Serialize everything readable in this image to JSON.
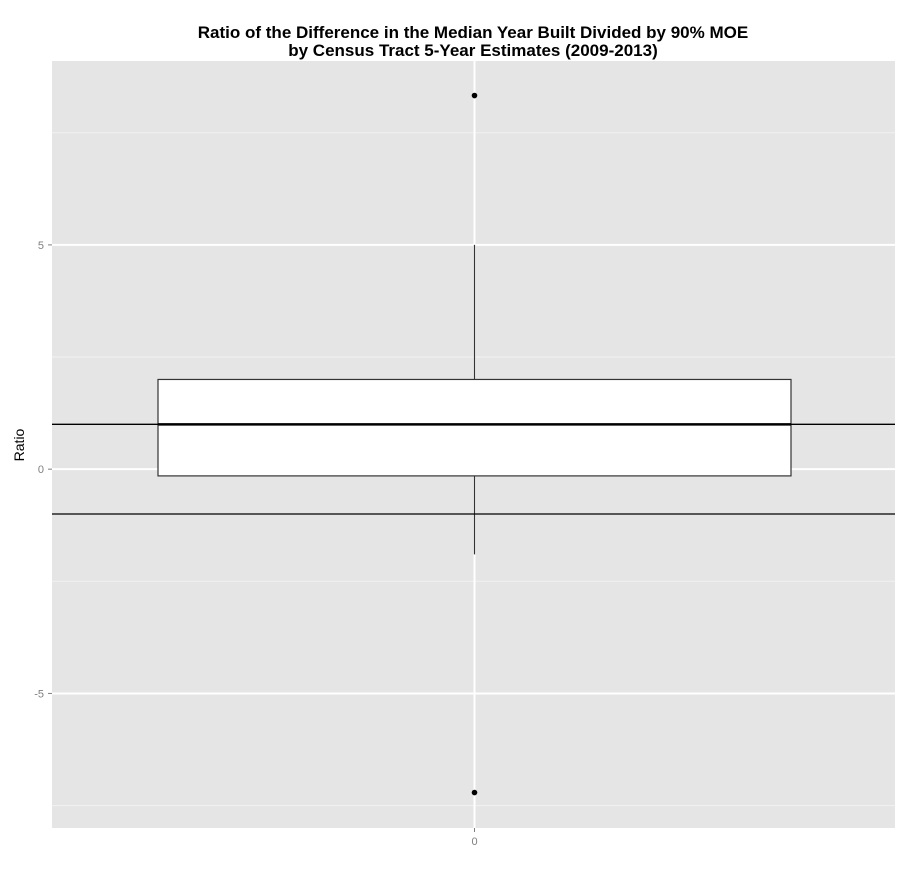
{
  "chart_data": {
    "type": "boxplot",
    "title": "Ratio of the Difference in the Median Year Built Divided by 90% MOE\nby Census Tract 5-Year Estimates (2009-2013)",
    "title_lines": [
      "Ratio of the Difference in the Median Year Built Divided by 90% MOE",
      "by Census Tract 5-Year Estimates (2009-2013)"
    ],
    "xlabel": "",
    "ylabel": "Ratio",
    "categories": [
      "0"
    ],
    "boxes": [
      {
        "category": "0",
        "whisker_low": -1.9,
        "q1": -0.15,
        "median": 1.0,
        "q3": 2.0,
        "whisker_high": 5.0,
        "outliers": [
          8.33,
          -7.21
        ]
      }
    ],
    "hlines": [
      1,
      -1
    ],
    "ylim": [
      -8.0,
      9.1
    ],
    "yticks": [
      -5,
      0,
      5
    ],
    "ytick_labels": [
      "-5",
      "0",
      "5"
    ],
    "xtick_labels": [
      "0"
    ],
    "grid": true,
    "colors": {
      "panel": "#e5e5e5",
      "grid": "#ffffff",
      "box_fill": "#ffffff",
      "line": "#000000"
    }
  }
}
